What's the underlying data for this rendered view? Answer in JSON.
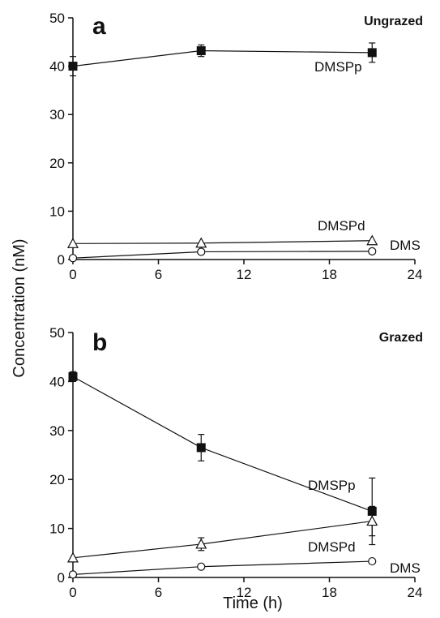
{
  "ylabel": "Concentration (nM)",
  "xlabel": "Time (h)",
  "chart_data": [
    {
      "type": "line",
      "panel_letter": "a",
      "title": "Ungrazed",
      "x_ticks": [
        "0",
        "6",
        "12",
        "18",
        "24"
      ],
      "y_ticks": [
        "0",
        "10",
        "20",
        "30",
        "40",
        "50"
      ],
      "xlim": [
        0,
        24
      ],
      "ylim": [
        0,
        50
      ],
      "series": [
        {
          "name": "DMSPp",
          "marker": "filled-square",
          "x": [
            0,
            9,
            21
          ],
          "y": [
            40,
            43.2,
            42.8
          ],
          "err": [
            2,
            1.2,
            2
          ]
        },
        {
          "name": "DMSPd",
          "marker": "open-triangle",
          "x": [
            0,
            9,
            21
          ],
          "y": [
            3.3,
            3.4,
            3.9
          ],
          "err": [
            0,
            0,
            0
          ]
        },
        {
          "name": "DMS",
          "marker": "open-circle",
          "x": [
            0,
            9,
            21
          ],
          "y": [
            0.3,
            1.6,
            1.7
          ],
          "err": [
            0,
            0,
            0
          ]
        }
      ]
    },
    {
      "type": "line",
      "panel_letter": "b",
      "title": "Grazed",
      "x_ticks": [
        "0",
        "6",
        "12",
        "18",
        "24"
      ],
      "y_ticks": [
        "0",
        "10",
        "20",
        "30",
        "40",
        "50"
      ],
      "xlim": [
        0,
        24
      ],
      "ylim": [
        0,
        50
      ],
      "series": [
        {
          "name": "DMSPp",
          "marker": "filled-square",
          "x": [
            0,
            9,
            21
          ],
          "y": [
            41,
            26.5,
            13.5
          ],
          "err": [
            1,
            2.7,
            6.8
          ]
        },
        {
          "name": "DMSPd",
          "marker": "open-triangle",
          "x": [
            0,
            9,
            21
          ],
          "y": [
            4,
            6.8,
            11.5
          ],
          "err": [
            0,
            1.3,
            3
          ]
        },
        {
          "name": "DMS",
          "marker": "open-circle",
          "x": [
            0,
            9,
            21
          ],
          "y": [
            0.6,
            2.2,
            3.3
          ],
          "err": [
            0,
            0,
            0
          ]
        }
      ]
    }
  ]
}
